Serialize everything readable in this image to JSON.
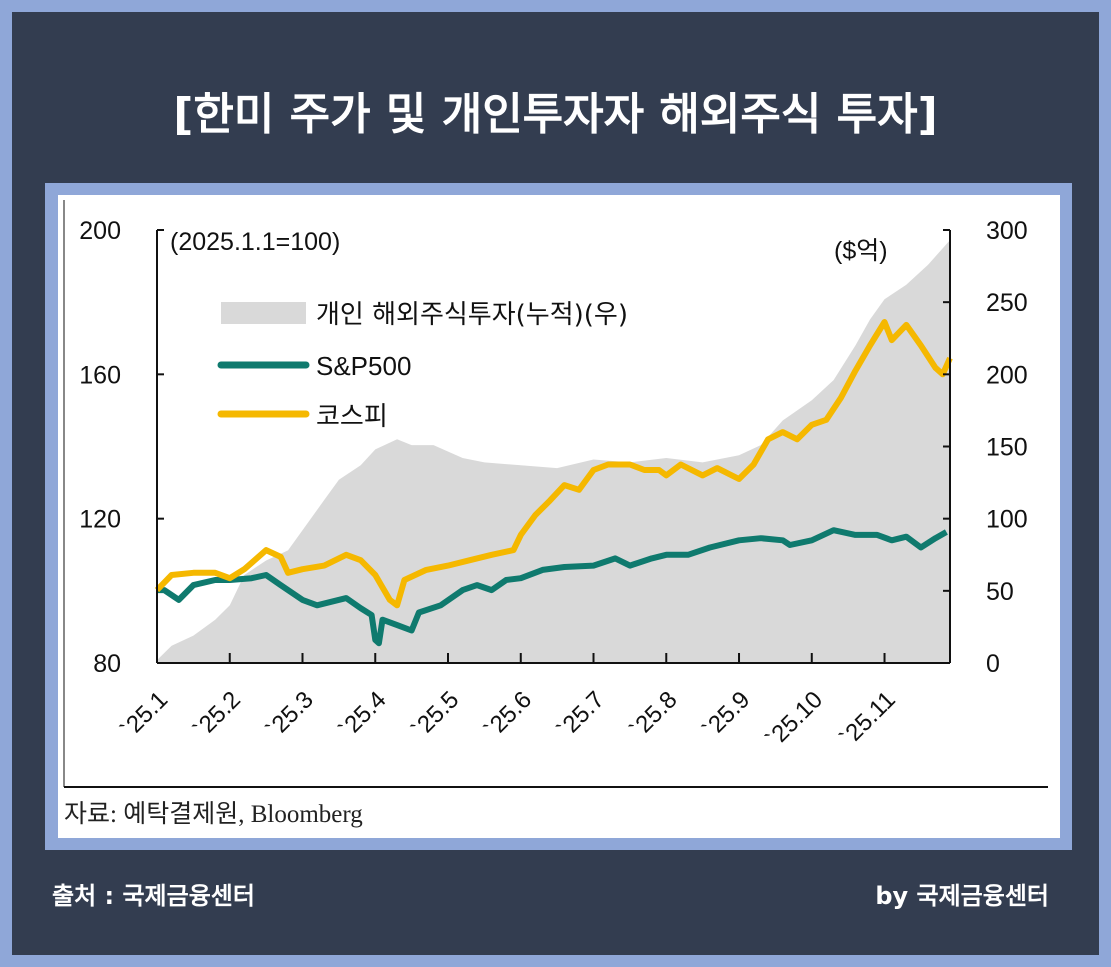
{
  "title": "[한미 주가 및 개인투자자 해외주식 투자]",
  "footer": {
    "source_left": "출처 : 국제금융센터",
    "byline": "by 국제금융센터"
  },
  "colors": {
    "kospi": "#f5b800",
    "sp500": "#0f7a6e",
    "area": "#d9d9d9",
    "frame": "#333d50",
    "border": "#8fa7d8"
  },
  "chart_data": {
    "type": "line",
    "title": "",
    "left_axis_note": "(2025.1.1=100)",
    "right_axis_note": "($억)",
    "source": "자료:  예탁결제원, Bloomberg",
    "legend_placement": "top-left",
    "x_unit": "months since 2025.1.1",
    "xlim": [
      0,
      10.9
    ],
    "x_ticks": [
      0,
      1,
      2,
      3,
      4,
      5,
      6,
      7,
      8,
      9,
      10
    ],
    "x_tick_labels": [
      "`25.1",
      "`25.2",
      "`25.3",
      "`25.4",
      "`25.5",
      "`25.6",
      "`25.7",
      "`25.8",
      "`25.9",
      "`25.10",
      "`25.11"
    ],
    "ylim_left": [
      80,
      200
    ],
    "yticks_left": [
      80,
      120,
      160,
      200
    ],
    "ylim_right": [
      0,
      300
    ],
    "yticks_right": [
      0,
      50,
      100,
      150,
      200,
      250,
      300
    ],
    "series": [
      {
        "name": "개인 해외주식투자(누적)(우)",
        "kind": "area",
        "axis": "right",
        "x": [
          0,
          0.2,
          0.5,
          0.8,
          1.0,
          1.2,
          1.5,
          1.8,
          2.0,
          2.3,
          2.5,
          2.8,
          3.0,
          3.3,
          3.5,
          3.8,
          4.2,
          4.5,
          5.0,
          5.5,
          6.0,
          6.5,
          7.0,
          7.5,
          8.0,
          8.3,
          8.6,
          9.0,
          9.3,
          9.6,
          9.8,
          10.0,
          10.3,
          10.6,
          10.9
        ],
        "values": [
          2,
          12,
          19,
          30,
          40,
          61,
          71,
          78,
          92,
          113,
          127,
          137,
          148,
          155,
          151,
          151,
          142,
          139,
          137,
          135,
          141,
          139,
          142,
          139,
          144,
          151,
          168,
          182,
          196,
          220,
          238,
          252,
          262,
          276,
          293
        ]
      },
      {
        "name": "S&P500",
        "kind": "line",
        "axis": "left",
        "x": [
          0,
          0.1,
          0.3,
          0.5,
          0.8,
          1.0,
          1.3,
          1.5,
          1.7,
          2.0,
          2.2,
          2.4,
          2.6,
          2.8,
          2.95,
          3.0,
          3.05,
          3.1,
          3.3,
          3.5,
          3.6,
          3.9,
          4.2,
          4.4,
          4.6,
          4.8,
          5.0,
          5.3,
          5.6,
          6.0,
          6.3,
          6.5,
          6.8,
          7.0,
          7.3,
          7.6,
          8.0,
          8.3,
          8.6,
          8.7,
          9.0,
          9.3,
          9.6,
          9.9,
          10.1,
          10.3,
          10.5,
          10.7,
          10.85
        ],
        "values": [
          100.2,
          100.2,
          97.5,
          101.6,
          103,
          103,
          103.5,
          104.4,
          101.6,
          97.5,
          96,
          97,
          98,
          95.2,
          93.3,
          86.4,
          85.5,
          92,
          90.5,
          89,
          94,
          96,
          100.2,
          101.6,
          100.2,
          103,
          103.5,
          105.8,
          106.6,
          107,
          109,
          107,
          109,
          110,
          110,
          112,
          114,
          114.6,
          114,
          112.7,
          114,
          116.8,
          115.5,
          115.5,
          114,
          115,
          112,
          114.6,
          116.3
        ]
      },
      {
        "name": "코스피",
        "kind": "line",
        "axis": "left",
        "x": [
          0,
          0.2,
          0.5,
          0.8,
          1.0,
          1.2,
          1.5,
          1.7,
          1.8,
          2.0,
          2.3,
          2.6,
          2.8,
          3.0,
          3.2,
          3.3,
          3.4,
          3.7,
          4.0,
          4.3,
          4.6,
          4.9,
          5.0,
          5.2,
          5.4,
          5.6,
          5.8,
          6.0,
          6.2,
          6.5,
          6.7,
          6.9,
          7.0,
          7.2,
          7.5,
          7.7,
          8.0,
          8.2,
          8.4,
          8.6,
          8.8,
          9.0,
          9.2,
          9.4,
          9.6,
          9.8,
          10.0,
          10.1,
          10.3,
          10.5,
          10.7,
          10.8,
          10.9
        ],
        "values": [
          100.2,
          104.4,
          105,
          105,
          103.5,
          106,
          111.3,
          109.4,
          105,
          106,
          107,
          110,
          108.5,
          104.4,
          97.5,
          96,
          103,
          105.8,
          107,
          108.5,
          110,
          111.3,
          115.5,
          121,
          125,
          129.3,
          128,
          133.5,
          135,
          135,
          133.5,
          133.5,
          132,
          135,
          132,
          134,
          131,
          135,
          142,
          144,
          142,
          146,
          147.4,
          153.5,
          161,
          168,
          174.5,
          169.5,
          173.7,
          168,
          161.8,
          160,
          164.5
        ]
      }
    ]
  }
}
